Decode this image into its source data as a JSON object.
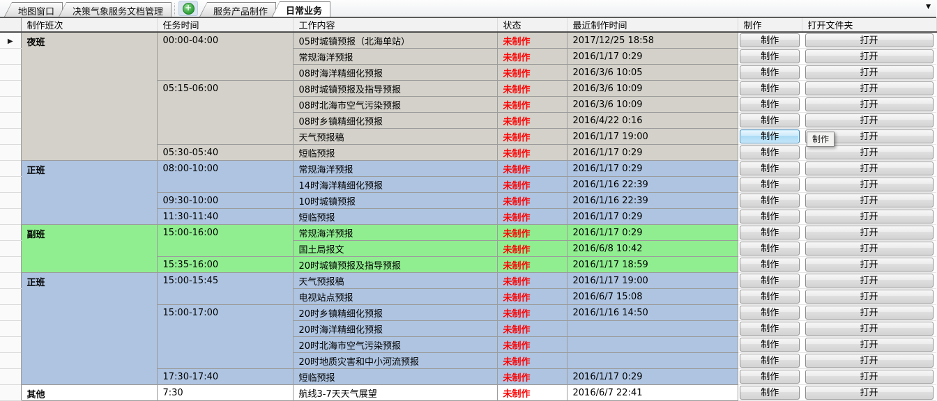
{
  "tabs": [
    {
      "label": "地图窗口",
      "active": false
    },
    {
      "label": "决策气象服务文档管理",
      "active": false
    },
    {
      "label": "服务产品制作",
      "active": false
    },
    {
      "label": "日常业务",
      "active": true
    }
  ],
  "tab_dropdown_icon": "chevron-down",
  "add_icon": "plus-circle",
  "tooltip": {
    "text": "制作"
  },
  "colors": {
    "night_shift_bg": "#d3d1c9",
    "regular_shift_bg": "#aec4e1",
    "deputy_shift_bg": "#90ee90",
    "other_shift_bg": "#ffffff",
    "status_text": "#ff0000",
    "hovered_button_border": "#3c7fb1"
  },
  "table": {
    "headers": [
      "制作班次",
      "任务时间",
      "工作内容",
      "状态",
      "最近制作时间",
      "制作",
      "打开文件夹"
    ],
    "make_label": "制作",
    "open_label": "打开",
    "sections": [
      {
        "shift": "夜班",
        "color": "#d3d1c9",
        "groups": [
          {
            "time": "00:00-04:00",
            "rows": [
              {
                "content": "05时城镇预报（北海单站）",
                "status": "未制作",
                "last_time": "2017/12/25 18:58"
              },
              {
                "content": "常规海洋预报",
                "status": "未制作",
                "last_time": "2016/1/17 0:29"
              },
              {
                "content": "08时海洋精细化预报",
                "status": "未制作",
                "last_time": "2016/3/6 10:05"
              }
            ]
          },
          {
            "time": "05:15-06:00",
            "rows": [
              {
                "content": "08时城镇预报及指导预报",
                "status": "未制作",
                "last_time": "2016/3/6 10:09"
              },
              {
                "content": "08时北海市空气污染预报",
                "status": "未制作",
                "last_time": "2016/3/6 10:09"
              },
              {
                "content": "08时乡镇精细化预报",
                "status": "未制作",
                "last_time": "2016/4/22 0:16"
              },
              {
                "content": "天气预报稿",
                "status": "未制作",
                "last_time": "2016/1/17 19:00",
                "make_hovered": true
              }
            ]
          },
          {
            "time": "05:30-05:40",
            "rows": [
              {
                "content": "短临预报",
                "status": "未制作",
                "last_time": "2016/1/17 0:29"
              }
            ]
          }
        ]
      },
      {
        "shift": "正班",
        "color": "#aec4e1",
        "groups": [
          {
            "time": "08:00-10:00",
            "rows": [
              {
                "content": "常规海洋预报",
                "status": "未制作",
                "last_time": "2016/1/17 0:29"
              },
              {
                "content": "14时海洋精细化预报",
                "status": "未制作",
                "last_time": "2016/1/16 22:39"
              }
            ]
          },
          {
            "time": "09:30-10:00",
            "rows": [
              {
                "content": "10时城镇预报",
                "status": "未制作",
                "last_time": "2016/1/16 22:39"
              }
            ]
          },
          {
            "time": "11:30-11:40",
            "rows": [
              {
                "content": "短临预报",
                "status": "未制作",
                "last_time": "2016/1/17 0:29"
              }
            ]
          }
        ]
      },
      {
        "shift": "副班",
        "color": "#90ee90",
        "groups": [
          {
            "time": "15:00-16:00",
            "rows": [
              {
                "content": "常规海洋预报",
                "status": "未制作",
                "last_time": "2016/1/17 0:29"
              },
              {
                "content": "国土局报文",
                "status": "未制作",
                "last_time": "2016/6/8 10:42"
              }
            ]
          },
          {
            "time": "15:35-16:00",
            "rows": [
              {
                "content": "20时城镇预报及指导预报",
                "status": "未制作",
                "last_time": "2016/1/17 18:59"
              }
            ]
          }
        ]
      },
      {
        "shift": "正班",
        "color": "#aec4e1",
        "groups": [
          {
            "time": "15:00-15:45",
            "rows": [
              {
                "content": "天气预报稿",
                "status": "未制作",
                "last_time": "2016/1/17 19:00"
              },
              {
                "content": "电视站点预报",
                "status": "未制作",
                "last_time": "2016/6/7 15:08"
              }
            ]
          },
          {
            "time": "15:00-17:00",
            "rows": [
              {
                "content": "20时乡镇精细化预报",
                "status": "未制作",
                "last_time": "2016/1/16 14:50"
              },
              {
                "content": "20时海洋精细化预报",
                "status": "未制作",
                "last_time": ""
              },
              {
                "content": "20时北海市空气污染预报",
                "status": "未制作",
                "last_time": ""
              },
              {
                "content": "20时地质灾害和中小河流预报",
                "status": "未制作",
                "last_time": ""
              }
            ]
          },
          {
            "time": "17:30-17:40",
            "rows": [
              {
                "content": "短临预报",
                "status": "未制作",
                "last_time": "2016/1/17 0:29"
              }
            ]
          }
        ]
      },
      {
        "shift": "其他",
        "color": "#ffffff",
        "groups": [
          {
            "time": "7:30",
            "rows": [
              {
                "content": "航线3-7天天气展望",
                "status": "未制作",
                "last_time": "2016/6/7 22:41"
              }
            ]
          }
        ]
      }
    ]
  }
}
